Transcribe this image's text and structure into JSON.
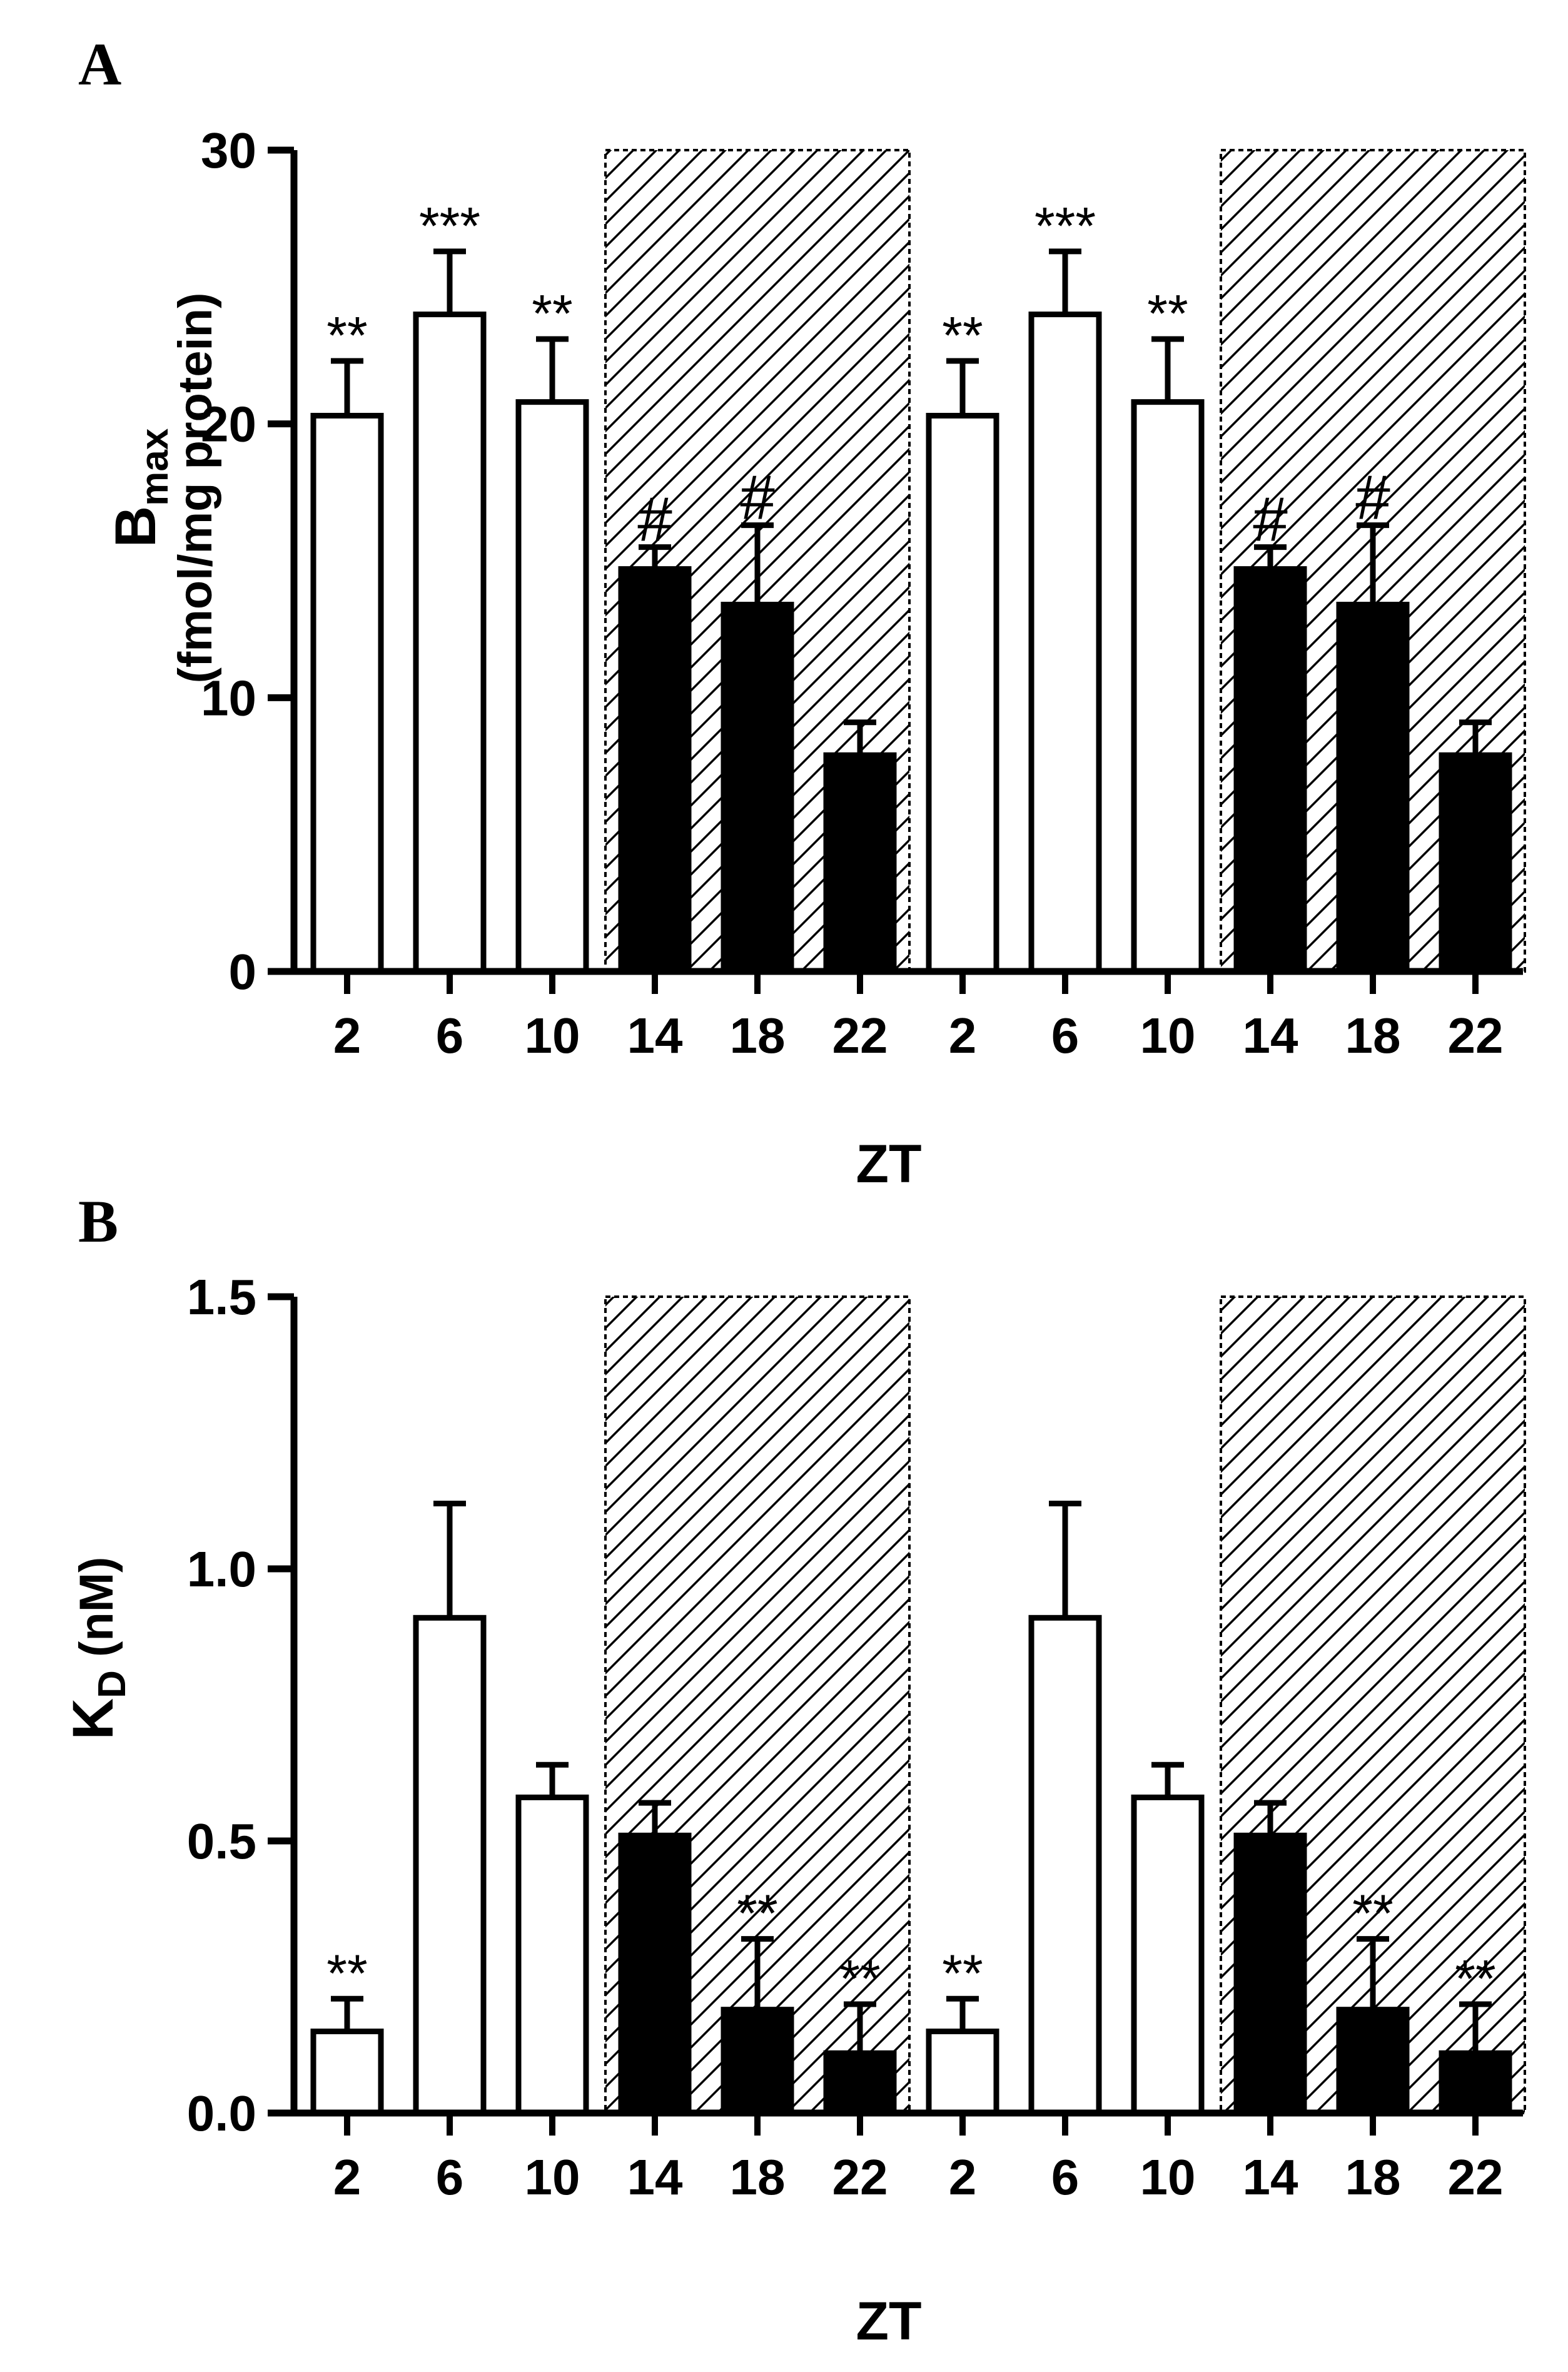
{
  "chart_data": [
    {
      "panel": "A",
      "type": "bar",
      "xlabel": "ZT",
      "ylabel": {
        "main": "B",
        "sub": "max",
        "second_line": "(fmol/mg protein)"
      },
      "ylim": [
        0,
        30
      ],
      "yticks": [
        "0",
        "10",
        "20",
        "30"
      ],
      "categories": [
        "2",
        "6",
        "10",
        "14",
        "18",
        "22",
        "2",
        "6",
        "10",
        "14",
        "18",
        "22"
      ],
      "values": [
        20.3,
        24.0,
        20.8,
        14.7,
        13.4,
        7.9,
        20.3,
        24.0,
        20.8,
        14.7,
        13.4,
        7.9
      ],
      "errors": [
        2.0,
        2.3,
        2.3,
        0.8,
        2.9,
        1.2,
        2.0,
        2.3,
        2.3,
        0.8,
        2.9,
        1.2
      ],
      "bar_fill": [
        "white",
        "white",
        "white",
        "black",
        "black",
        "black",
        "white",
        "white",
        "white",
        "black",
        "black",
        "black"
      ],
      "annotations": [
        "**",
        "***",
        "**",
        "#",
        "#",
        "",
        "**",
        "***",
        "**",
        "#",
        "#",
        ""
      ],
      "dark_phase_groups": [
        [
          3,
          5
        ],
        [
          9,
          11
        ]
      ]
    },
    {
      "panel": "B",
      "type": "bar",
      "xlabel": "ZT",
      "ylabel": {
        "main": "K",
        "sub": "D",
        "suffix": " (nM)"
      },
      "ylim": [
        0,
        1.5
      ],
      "yticks": [
        "0.0",
        "0.5",
        "1.0",
        "1.5"
      ],
      "categories": [
        "2",
        "6",
        "10",
        "14",
        "18",
        "22",
        "2",
        "6",
        "10",
        "14",
        "18",
        "22"
      ],
      "values": [
        0.15,
        0.91,
        0.58,
        0.51,
        0.19,
        0.11,
        0.15,
        0.91,
        0.58,
        0.51,
        0.19,
        0.11
      ],
      "errors": [
        0.06,
        0.21,
        0.06,
        0.06,
        0.13,
        0.09,
        0.06,
        0.21,
        0.06,
        0.06,
        0.13,
        0.09
      ],
      "bar_fill": [
        "white",
        "white",
        "white",
        "black",
        "black",
        "black",
        "white",
        "white",
        "white",
        "black",
        "black",
        "black"
      ],
      "annotations": [
        "**",
        "",
        "",
        "",
        "**",
        "**",
        "**",
        "",
        "",
        "",
        "**",
        "**"
      ],
      "dark_phase_groups": [
        [
          3,
          5
        ],
        [
          9,
          11
        ]
      ]
    }
  ]
}
